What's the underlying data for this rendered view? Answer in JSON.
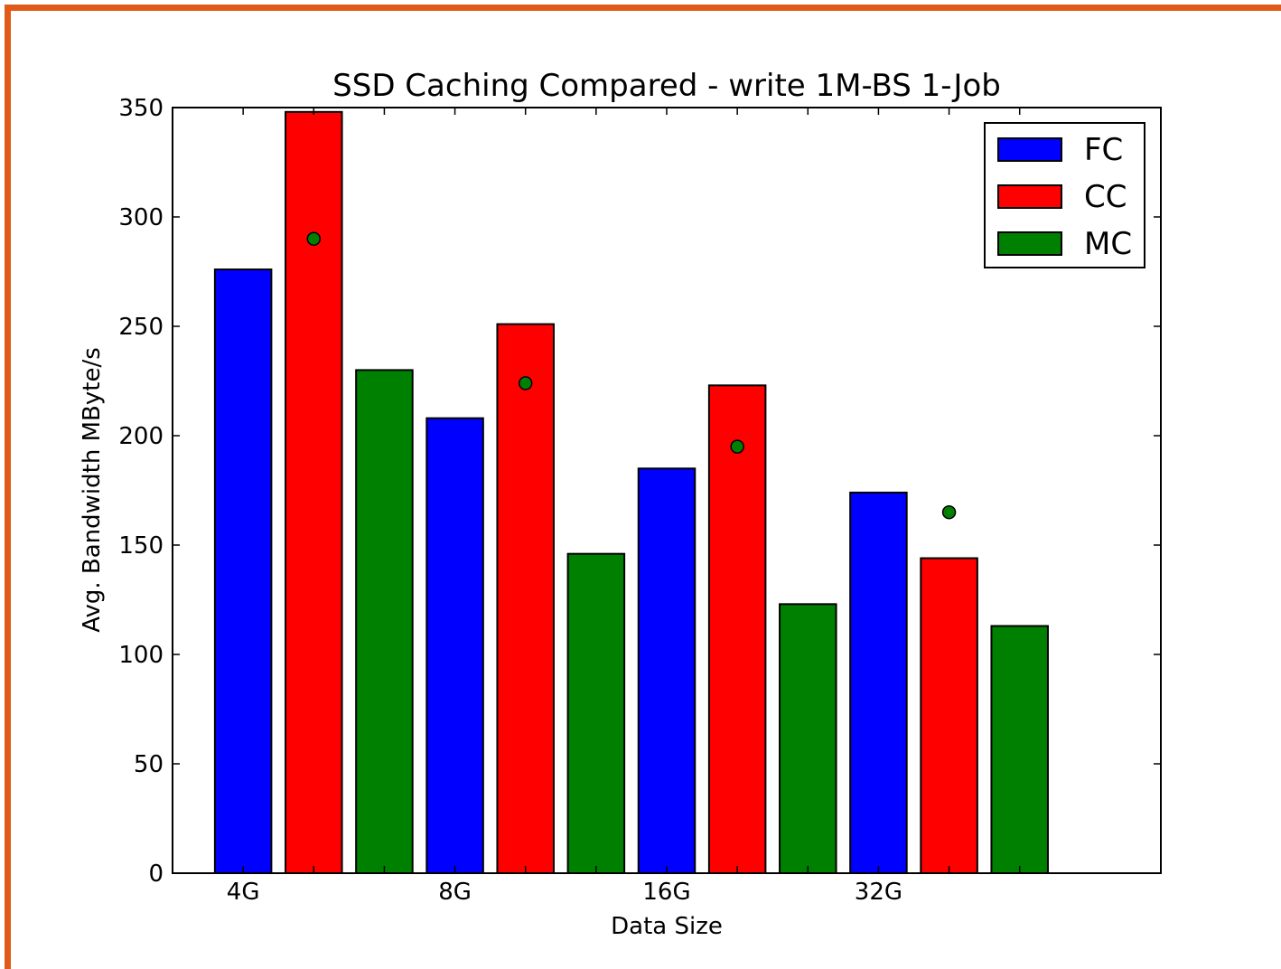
{
  "colors": {
    "frame": "#e05b1a",
    "FC": "#0000ff",
    "CC": "#ff0000",
    "MC": "#008000"
  },
  "chart_data": {
    "type": "bar",
    "title": "SSD Caching Compared - write 1M-BS 1-Job",
    "xlabel": "Data Size",
    "ylabel": "Avg. Bandwidth MByte/s",
    "ylim": [
      0,
      350
    ],
    "yticks": [
      0,
      50,
      100,
      150,
      200,
      250,
      300,
      350
    ],
    "categories": [
      "4G",
      "8G",
      "16G",
      "32G"
    ],
    "series": [
      {
        "name": "FC",
        "color": "#0000ff",
        "values": [
          276,
          208,
          185,
          174
        ]
      },
      {
        "name": "CC",
        "color": "#ff0000",
        "values": [
          348,
          251,
          223,
          144
        ]
      },
      {
        "name": "MC",
        "color": "#008000",
        "values": [
          230,
          146,
          123,
          113
        ]
      }
    ],
    "markers": {
      "color": "#008000",
      "values": [
        290,
        224,
        195,
        165
      ]
    },
    "legend": {
      "position": "top-right",
      "entries": [
        "FC",
        "CC",
        "MC"
      ]
    },
    "grid": false
  }
}
